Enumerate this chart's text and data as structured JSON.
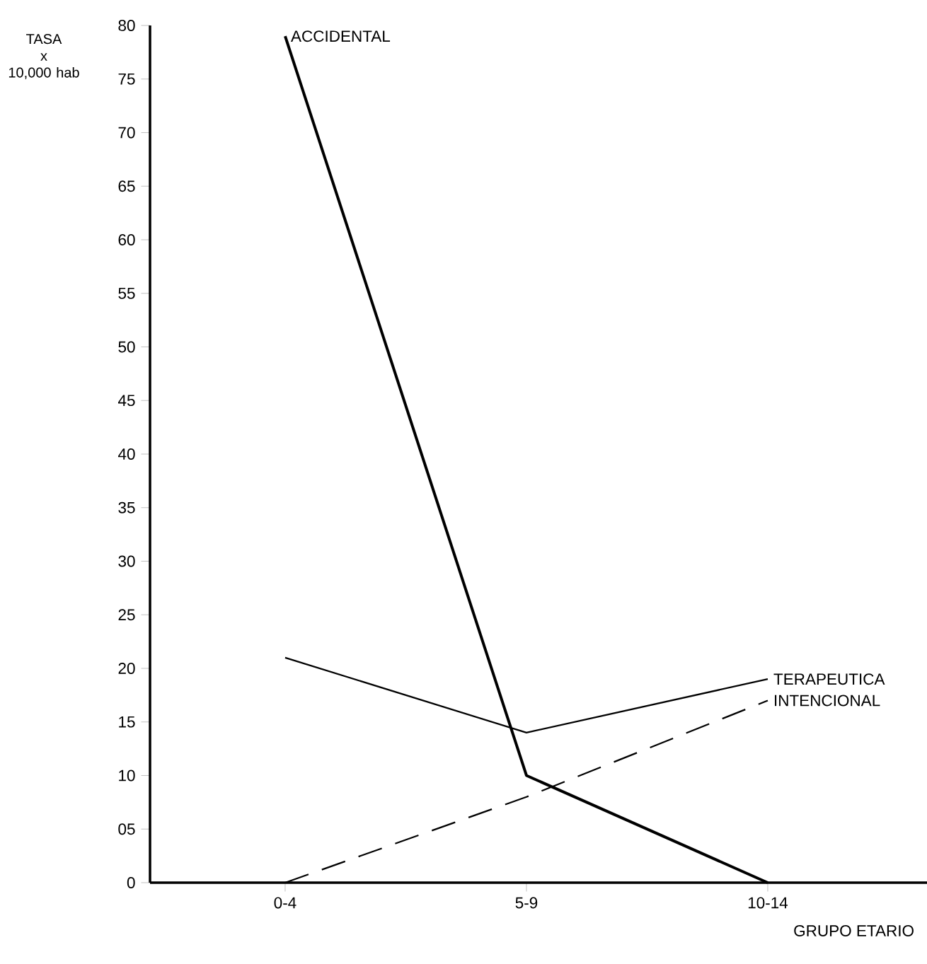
{
  "chart_data": {
    "type": "line",
    "xlabel": "GRUPO ETARIO",
    "ylabel": "TASA\nx\n10,000 hab",
    "categories": [
      "0-4",
      "5-9",
      "10-14"
    ],
    "series": [
      {
        "name": "ACCIDENTAL",
        "color": "#000000",
        "values": [
          79,
          10,
          0
        ],
        "line_style": "solid"
      },
      {
        "name": "TERAPEUTICA",
        "color": "#000000",
        "values": [
          21,
          14,
          19
        ],
        "line_style": "solid"
      },
      {
        "name": "INTENCIONAL",
        "color": "#000000",
        "values": [
          0,
          8,
          17
        ],
        "line_style": "dashed"
      }
    ],
    "ylim": [
      0,
      80
    ],
    "yticks": [
      0,
      {
        "value": 5,
        "label": "05"
      },
      10,
      15,
      20,
      25,
      30,
      35,
      40,
      45,
      50,
      55,
      60,
      65,
      70,
      75,
      80
    ],
    "grid": false,
    "legend": false
  }
}
